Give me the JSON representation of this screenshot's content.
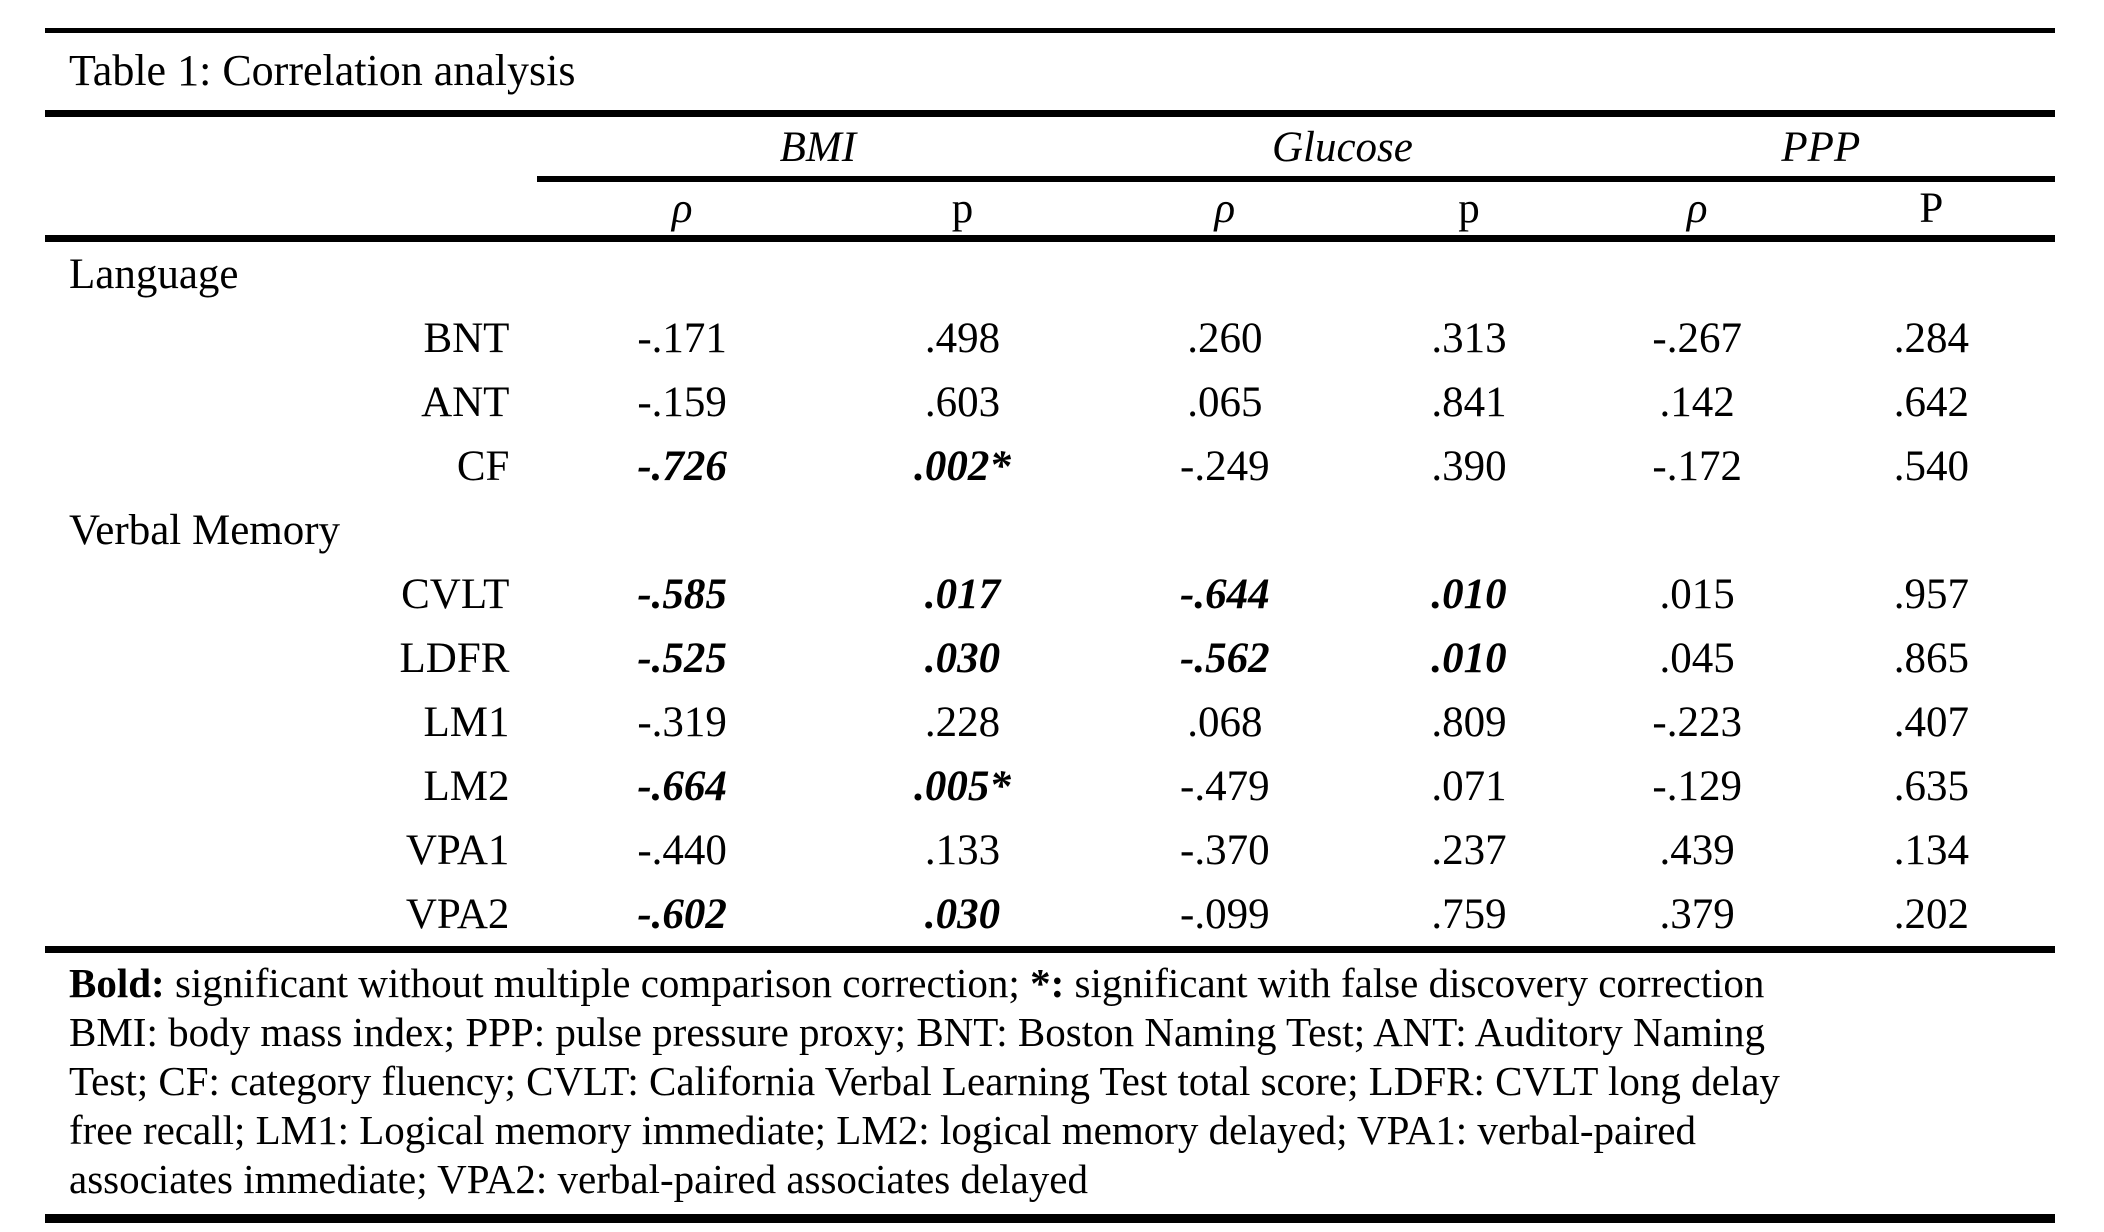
{
  "title": "Table 1: Correlation analysis",
  "colors": {
    "text": "#000000",
    "rule": "#000000",
    "background": "#ffffff"
  },
  "table": {
    "column_groups": [
      {
        "label": "BMI"
      },
      {
        "label": "Glucose"
      },
      {
        "label": "PPP"
      }
    ],
    "subheaders": [
      {
        "text": "ρ",
        "italic": true
      },
      {
        "text": "p",
        "italic": false
      },
      {
        "text": "ρ",
        "italic": true
      },
      {
        "text": "p",
        "italic": false
      },
      {
        "text": "ρ",
        "italic": true
      },
      {
        "text": "P",
        "italic": false
      }
    ],
    "rows": [
      {
        "type": "section",
        "label": "Language"
      },
      {
        "type": "data",
        "label": "BNT",
        "values": [
          {
            "v": "-.171"
          },
          {
            "v": ".498"
          },
          {
            "v": ".260"
          },
          {
            "v": ".313"
          },
          {
            "v": "-.267"
          },
          {
            "v": ".284"
          }
        ]
      },
      {
        "type": "data",
        "label": "ANT",
        "values": [
          {
            "v": "-.159"
          },
          {
            "v": ".603"
          },
          {
            "v": ".065"
          },
          {
            "v": ".841"
          },
          {
            "v": ".142"
          },
          {
            "v": ".642"
          }
        ]
      },
      {
        "type": "data",
        "label": "CF",
        "values": [
          {
            "v": "-.726",
            "sig": true
          },
          {
            "v": ".002*",
            "sig": true
          },
          {
            "v": "-.249"
          },
          {
            "v": ".390"
          },
          {
            "v": "-.172"
          },
          {
            "v": ".540"
          }
        ]
      },
      {
        "type": "section",
        "label": "Verbal Memory"
      },
      {
        "type": "data",
        "label": "CVLT",
        "values": [
          {
            "v": "-.585",
            "sig": true
          },
          {
            "v": ".017",
            "sig": true
          },
          {
            "v": "-.644",
            "sig": true
          },
          {
            "v": ".010",
            "sig": true
          },
          {
            "v": ".015"
          },
          {
            "v": ".957"
          }
        ]
      },
      {
        "type": "data",
        "label": "LDFR",
        "values": [
          {
            "v": "-.525",
            "sig": true
          },
          {
            "v": ".030",
            "sig": true
          },
          {
            "v": "-.562",
            "sig": true
          },
          {
            "v": ".010",
            "sig": true
          },
          {
            "v": ".045"
          },
          {
            "v": ".865"
          }
        ]
      },
      {
        "type": "data",
        "label": "LM1",
        "values": [
          {
            "v": "-.319"
          },
          {
            "v": ".228"
          },
          {
            "v": ".068"
          },
          {
            "v": ".809"
          },
          {
            "v": "-.223"
          },
          {
            "v": ".407"
          }
        ]
      },
      {
        "type": "data",
        "label": "LM2",
        "values": [
          {
            "v": "-.664",
            "sig": true
          },
          {
            "v": ".005*",
            "sig": true
          },
          {
            "v": "-.479"
          },
          {
            "v": ".071"
          },
          {
            "v": "-.129"
          },
          {
            "v": ".635"
          }
        ]
      },
      {
        "type": "data",
        "label": "VPA1",
        "values": [
          {
            "v": "-.440"
          },
          {
            "v": ".133"
          },
          {
            "v": "-.370"
          },
          {
            "v": ".237"
          },
          {
            "v": ".439"
          },
          {
            "v": ".134"
          }
        ]
      },
      {
        "type": "data",
        "label": "VPA2",
        "values": [
          {
            "v": "-.602",
            "sig": true
          },
          {
            "v": ".030",
            "sig": true
          },
          {
            "v": "-.099"
          },
          {
            "v": ".759"
          },
          {
            "v": ".379"
          },
          {
            "v": ".202"
          }
        ]
      }
    ]
  },
  "footnote": {
    "line1": [
      {
        "text": "Bold:",
        "bold": true
      },
      {
        "text": " significant without multiple comparison correction; ",
        "bold": false
      },
      {
        "text": "*:",
        "bold": true
      },
      {
        "text": " significant with false discovery correction",
        "bold": false
      }
    ],
    "abbrev_lines": [
      "BMI: body mass index; PPP: pulse pressure proxy; BNT: Boston Naming Test; ANT: Auditory Naming",
      "Test; CF: category fluency; CVLT: California Verbal Learning Test total score; LDFR: CVLT long delay",
      "free recall; LM1: Logical memory immediate; LM2: logical memory delayed; VPA1: verbal-paired",
      "associates immediate; VPA2: verbal-paired associates delayed"
    ]
  }
}
